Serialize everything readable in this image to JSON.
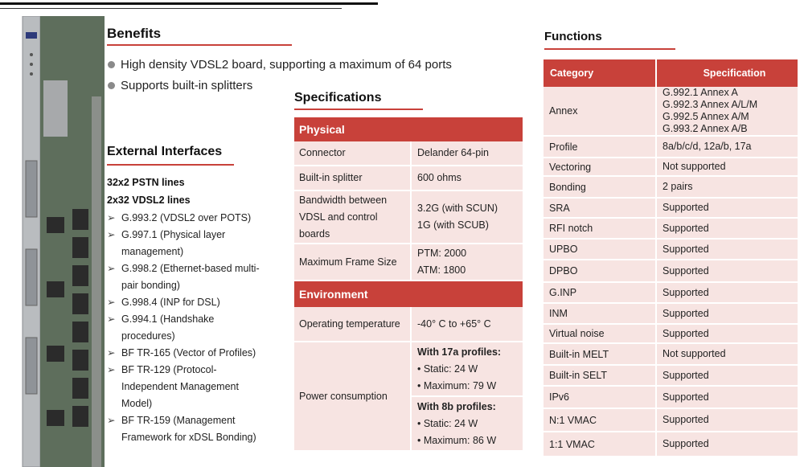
{
  "benefits": {
    "title": "Benefits",
    "items": [
      "High density VDSL2 board, supporting a maximum of 64 ports",
      "Supports built-in splitters"
    ]
  },
  "external_interfaces": {
    "title": "External Interfaces",
    "lines_pstn": "32x2 PSTN lines",
    "lines_vdsl": "2x32 VDSL2 lines",
    "items": [
      [
        "G.993.2 (VDSL2 over POTS)"
      ],
      [
        "G.997.1 (Physical layer",
        "management)"
      ],
      [
        "G.998.2 (Ethernet-based multi-",
        "pair bonding)"
      ],
      [
        "G.998.4 (INP for DSL)"
      ],
      [
        "G.994.1 (Handshake",
        "procedures)"
      ],
      [
        "BF TR-165 (Vector of Profiles)"
      ],
      [
        "BF TR-129 (Protocol-",
        "Independent Management",
        "Model)"
      ],
      [
        "BF TR-159 (Management",
        "Framework for xDSL Bonding)"
      ]
    ]
  },
  "specifications": {
    "title": "Specifications",
    "physical_label": "Physical",
    "physical": [
      {
        "k": "Connector",
        "v": [
          "Delander 64-pin"
        ]
      },
      {
        "k": "Built-in splitter",
        "v": [
          "600 ohms"
        ]
      },
      {
        "k": "Bandwidth between VDSL and control boards",
        "v": [
          "3.2G (with SCUN)",
          "1G (with SCUB)"
        ]
      },
      {
        "k": "Maximum Frame Size",
        "v": [
          "PTM: 2000",
          "ATM: 1800"
        ]
      }
    ],
    "environment_label": "Environment",
    "operating_temperature": {
      "k": "Operating temperature",
      "v": "-40° C to +65° C"
    },
    "power": {
      "k": "Power consumption",
      "g1_title": "With 17a profiles:",
      "g1_items": [
        "• Static: 24 W",
        "• Maximum: 79 W"
      ],
      "g2_title": "With 8b profiles:",
      "g2_items": [
        "• Static: 24 W",
        "• Maximum: 86 W"
      ]
    }
  },
  "functions": {
    "title": "Functions",
    "col_category": "Category",
    "col_spec": "Specification",
    "rows": [
      {
        "k": "Annex",
        "v": [
          "G.992.1 Annex A",
          "G.992.3 Annex A/L/M",
          "G.992.5 Annex A/M",
          "G.993.2 Annex A/B"
        ]
      },
      {
        "k": "Profile",
        "v": [
          "8a/b/c/d, 12a/b, 17a"
        ]
      },
      {
        "k": "Vectoring",
        "v": [
          "Not supported"
        ]
      },
      {
        "k": "Bonding",
        "v": [
          "2 pairs"
        ]
      },
      {
        "k": "SRA",
        "v": [
          "Supported"
        ]
      },
      {
        "k": "RFI notch",
        "v": [
          "Supported"
        ]
      },
      {
        "k": "UPBO",
        "v": [
          "Supported"
        ]
      },
      {
        "k": "DPBO",
        "v": [
          "Supported"
        ]
      },
      {
        "k": "G.INP",
        "v": [
          "Supported"
        ]
      },
      {
        "k": "INM",
        "v": [
          "Supported"
        ]
      },
      {
        "k": "Virtual noise",
        "v": [
          "Supported"
        ]
      },
      {
        "k": "Built-in MELT",
        "v": [
          "Not supported"
        ]
      },
      {
        "k": "Built-in SELT",
        "v": [
          "Supported"
        ]
      },
      {
        "k": "IPv6",
        "v": [
          "Supported"
        ]
      },
      {
        "k": "N:1 VMAC",
        "v": [
          "Supported"
        ]
      },
      {
        "k": "1:1 VMAC",
        "v": [
          "Supported"
        ]
      }
    ]
  }
}
